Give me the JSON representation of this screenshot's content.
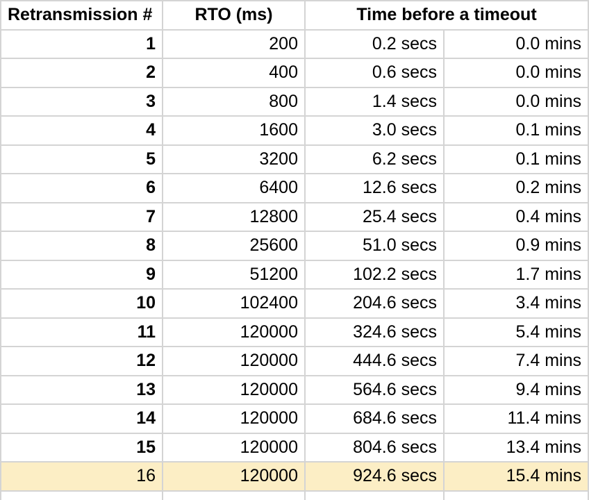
{
  "colors": {
    "background": "#ffffff",
    "gridline": "#d4d4d4",
    "text": "#000000",
    "highlight_row_bg": "#fceec5"
  },
  "table": {
    "headers": [
      "Retransmission #",
      "RTO (ms)",
      "Time before a timeout"
    ],
    "cell_names": [
      "cell-retransmission-number",
      "cell-rto-ms",
      "cell-time-secs",
      "cell-time-mins"
    ],
    "rows": [
      {
        "cells": [
          "1",
          "200",
          "0.2 secs",
          "0.0 mins"
        ],
        "highlight": false
      },
      {
        "cells": [
          "2",
          "400",
          "0.6 secs",
          "0.0 mins"
        ],
        "highlight": false
      },
      {
        "cells": [
          "3",
          "800",
          "1.4 secs",
          "0.0 mins"
        ],
        "highlight": false
      },
      {
        "cells": [
          "4",
          "1600",
          "3.0 secs",
          "0.1 mins"
        ],
        "highlight": false
      },
      {
        "cells": [
          "5",
          "3200",
          "6.2 secs",
          "0.1 mins"
        ],
        "highlight": false
      },
      {
        "cells": [
          "6",
          "6400",
          "12.6 secs",
          "0.2 mins"
        ],
        "highlight": false
      },
      {
        "cells": [
          "7",
          "12800",
          "25.4 secs",
          "0.4 mins"
        ],
        "highlight": false
      },
      {
        "cells": [
          "8",
          "25600",
          "51.0 secs",
          "0.9 mins"
        ],
        "highlight": false
      },
      {
        "cells": [
          "9",
          "51200",
          "102.2 secs",
          "1.7 mins"
        ],
        "highlight": false
      },
      {
        "cells": [
          "10",
          "102400",
          "204.6 secs",
          "3.4 mins"
        ],
        "highlight": false
      },
      {
        "cells": [
          "11",
          "120000",
          "324.6 secs",
          "5.4 mins"
        ],
        "highlight": false
      },
      {
        "cells": [
          "12",
          "120000",
          "444.6 secs",
          "7.4 mins"
        ],
        "highlight": false
      },
      {
        "cells": [
          "13",
          "120000",
          "564.6 secs",
          "9.4 mins"
        ],
        "highlight": false
      },
      {
        "cells": [
          "14",
          "120000",
          "684.6 secs",
          "11.4 mins"
        ],
        "highlight": false
      },
      {
        "cells": [
          "15",
          "120000",
          "804.6 secs",
          "13.4 mins"
        ],
        "highlight": false
      },
      {
        "cells": [
          "16",
          "120000",
          "924.6 secs",
          "15.4 mins"
        ],
        "highlight": true
      }
    ]
  },
  "chart_data": {
    "type": "table",
    "title": "",
    "columns": [
      "Retransmission #",
      "RTO (ms)",
      "Time before a timeout (secs)",
      "Time before a timeout (mins)"
    ],
    "rows": [
      [
        1,
        200,
        0.2,
        0.0
      ],
      [
        2,
        400,
        0.6,
        0.0
      ],
      [
        3,
        800,
        1.4,
        0.0
      ],
      [
        4,
        1600,
        3.0,
        0.1
      ],
      [
        5,
        3200,
        6.2,
        0.1
      ],
      [
        6,
        6400,
        12.6,
        0.2
      ],
      [
        7,
        12800,
        25.4,
        0.4
      ],
      [
        8,
        25600,
        51.0,
        0.9
      ],
      [
        9,
        51200,
        102.2,
        1.7
      ],
      [
        10,
        102400,
        204.6,
        3.4
      ],
      [
        11,
        120000,
        324.6,
        5.4
      ],
      [
        12,
        120000,
        444.6,
        7.4
      ],
      [
        13,
        120000,
        564.6,
        9.4
      ],
      [
        14,
        120000,
        684.6,
        11.4
      ],
      [
        15,
        120000,
        804.6,
        13.4
      ],
      [
        16,
        120000,
        924.6,
        15.4
      ]
    ],
    "highlighted_row": 16,
    "merged_header": "Time before a timeout spans the secs and mins columns",
    "grid": true,
    "legend_position": "none"
  }
}
